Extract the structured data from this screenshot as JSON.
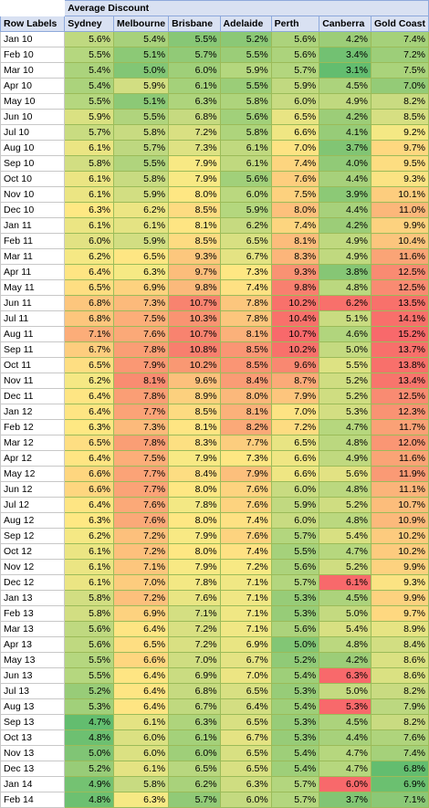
{
  "header": {
    "title": "Average Discount",
    "row_labels": "Row Labels",
    "columns": [
      "Sydney",
      "Melbourne",
      "Brisbane",
      "Adelaide",
      "Perth",
      "Canberra",
      "Gold Coast"
    ]
  },
  "rows": [
    {
      "label": "Jan 10",
      "cells": [
        "5.6%",
        "5.4%",
        "5.5%",
        "5.2%",
        "5.6%",
        "4.2%",
        "7.4%"
      ],
      "colors": [
        "#bfd980",
        "#a7d17b",
        "#87c776",
        "#8bc876",
        "#acd37c",
        "#9ccd78",
        "#a5d17a"
      ]
    },
    {
      "label": "Feb 10",
      "cells": [
        "5.5%",
        "5.1%",
        "5.7%",
        "5.5%",
        "5.6%",
        "3.4%",
        "7.2%"
      ],
      "colors": [
        "#b5d77f",
        "#8cc976",
        "#91ca77",
        "#9bcd78",
        "#acd37c",
        "#72c172",
        "#9dce79"
      ]
    },
    {
      "label": "Mar 10",
      "cells": [
        "5.4%",
        "5.0%",
        "6.0%",
        "5.9%",
        "5.7%",
        "3.1%",
        "7.5%"
      ],
      "colors": [
        "#abd37c",
        "#82c675",
        "#9fcf79",
        "#b4d77e",
        "#b3d67e",
        "#63bd6f",
        "#aad37b"
      ]
    },
    {
      "label": "Apr 10",
      "cells": [
        "5.4%",
        "5.9%",
        "6.1%",
        "5.5%",
        "5.9%",
        "4.5%",
        "7.0%"
      ],
      "colors": [
        "#abd37c",
        "#d2de82",
        "#a4d17a",
        "#9bcd78",
        "#c1d980",
        "#acd37c",
        "#94cb77"
      ]
    },
    {
      "label": "May 10",
      "cells": [
        "5.5%",
        "5.1%",
        "6.3%",
        "5.8%",
        "6.0%",
        "4.9%",
        "8.2%"
      ],
      "colors": [
        "#b5d77f",
        "#8cc976",
        "#aed47c",
        "#aed47c",
        "#c8db81",
        "#c0d97f",
        "#c9db81"
      ]
    },
    {
      "label": "Jun 10",
      "cells": [
        "5.9%",
        "5.5%",
        "6.8%",
        "5.6%",
        "6.5%",
        "4.2%",
        "8.5%"
      ],
      "colors": [
        "#dae182",
        "#b0d47d",
        "#c6da80",
        "#a1d07a",
        "#e8e483",
        "#9ccd78",
        "#d6df82"
      ]
    },
    {
      "label": "Jul 10",
      "cells": [
        "5.7%",
        "5.8%",
        "7.2%",
        "5.8%",
        "6.6%",
        "4.1%",
        "9.2%"
      ],
      "colors": [
        "#c9dc81",
        "#c8db81",
        "#d9e082",
        "#aed47c",
        "#efe683",
        "#97cc78",
        "#f4e884"
      ]
    },
    {
      "label": "Aug 10",
      "cells": [
        "6.1%",
        "5.7%",
        "7.3%",
        "6.1%",
        "7.0%",
        "3.7%",
        "9.7%"
      ],
      "colors": [
        "#ebe583",
        "#bed880",
        "#dee283",
        "#c0d97f",
        "#fde383",
        "#81c574",
        "#fed880"
      ]
    },
    {
      "label": "Sep 10",
      "cells": [
        "5.8%",
        "5.5%",
        "7.9%",
        "6.1%",
        "7.4%",
        "4.0%",
        "9.5%"
      ],
      "colors": [
        "#d2de82",
        "#b0d47d",
        "#f8e984",
        "#c0d97f",
        "#fdd57f",
        "#91ca77",
        "#fddd81"
      ]
    },
    {
      "label": "Oct 10",
      "cells": [
        "6.1%",
        "5.8%",
        "7.9%",
        "5.6%",
        "7.6%",
        "4.4%",
        "9.3%"
      ],
      "colors": [
        "#ebe583",
        "#c8db81",
        "#f8e984",
        "#a1d07a",
        "#fdce7e",
        "#a7d17b",
        "#fbe383"
      ]
    },
    {
      "label": "Nov 10",
      "cells": [
        "6.1%",
        "5.9%",
        "8.0%",
        "6.0%",
        "7.5%",
        "3.9%",
        "10.1%"
      ],
      "colors": [
        "#ebe583",
        "#d2de82",
        "#fee783",
        "#bad87f",
        "#fdd17e",
        "#8cc976",
        "#fdcd7e"
      ]
    },
    {
      "label": "Dec 10",
      "cells": [
        "6.3%",
        "6.2%",
        "8.5%",
        "5.9%",
        "8.0%",
        "4.4%",
        "11.0%"
      ],
      "colors": [
        "#fee883",
        "#ece583",
        "#fddb81",
        "#b4d77e",
        "#fdc07c",
        "#a7d17b",
        "#fcb77a"
      ]
    },
    {
      "label": "Jan 11",
      "cells": [
        "6.1%",
        "6.1%",
        "8.1%",
        "6.2%",
        "7.4%",
        "4.2%",
        "9.9%"
      ],
      "colors": [
        "#ebe583",
        "#e4e383",
        "#fee583",
        "#c6da80",
        "#fdd57f",
        "#9ccd78",
        "#fdd27f"
      ]
    },
    {
      "label": "Feb 11",
      "cells": [
        "6.0%",
        "5.9%",
        "8.5%",
        "6.5%",
        "8.1%",
        "4.9%",
        "10.4%"
      ],
      "colors": [
        "#e2e283",
        "#d2de82",
        "#fddb81",
        "#d8e082",
        "#fcbc7b",
        "#c0d97f",
        "#fcc57d"
      ]
    },
    {
      "label": "Mar 11",
      "cells": [
        "6.2%",
        "6.5%",
        "9.3%",
        "6.7%",
        "8.3%",
        "4.9%",
        "11.6%"
      ],
      "colors": [
        "#f5e884",
        "#fee683",
        "#fcc77d",
        "#e4e383",
        "#fcb57a",
        "#c0d97f",
        "#faa476"
      ]
    },
    {
      "label": "Apr 11",
      "cells": [
        "6.4%",
        "6.3%",
        "9.7%",
        "7.3%",
        "9.3%",
        "3.8%",
        "12.5%"
      ],
      "colors": [
        "#fee583",
        "#f6e984",
        "#fcbd7b",
        "#fee783",
        "#f99273",
        "#86c675",
        "#f98b72"
      ]
    },
    {
      "label": "May 11",
      "cells": [
        "6.5%",
        "6.9%",
        "9.8%",
        "7.4%",
        "9.8%",
        "4.8%",
        "12.5%"
      ],
      "colors": [
        "#fede82",
        "#fdd27f",
        "#fbb97b",
        "#fee183",
        "#f8806f",
        "#bbd87f",
        "#f98b72"
      ]
    },
    {
      "label": "Jun 11",
      "cells": [
        "6.8%",
        "7.3%",
        "10.7%",
        "7.8%",
        "10.2%",
        "6.2%",
        "13.5%"
      ],
      "colors": [
        "#fdc67d",
        "#fcba7b",
        "#f8836f",
        "#fcc67d",
        "#f8716b",
        "#f8706b",
        "#f8716b"
      ]
    },
    {
      "label": "Jul 11",
      "cells": [
        "6.8%",
        "7.5%",
        "10.3%",
        "7.8%",
        "10.4%",
        "5.1%",
        "14.1%"
      ],
      "colors": [
        "#fdc67d",
        "#fcae79",
        "#f99472",
        "#fcc67d",
        "#f8716b",
        "#c9dc81",
        "#f8706b"
      ]
    },
    {
      "label": "Aug 11",
      "cells": [
        "7.1%",
        "7.6%",
        "10.7%",
        "8.1%",
        "10.7%",
        "4.6%",
        "15.2%"
      ],
      "colors": [
        "#fcad79",
        "#fba978",
        "#f8836f",
        "#fbb17a",
        "#f8696b",
        "#b1d57d",
        "#f8696b"
      ]
    },
    {
      "label": "Sep 11",
      "cells": [
        "6.7%",
        "7.8%",
        "10.8%",
        "8.5%",
        "10.2%",
        "5.0%",
        "13.7%"
      ],
      "colors": [
        "#fdcd7e",
        "#fa9e75",
        "#f87f6e",
        "#fa9574",
        "#f8716b",
        "#c4da80",
        "#f8706b"
      ]
    },
    {
      "label": "Oct 11",
      "cells": [
        "6.5%",
        "7.9%",
        "10.2%",
        "8.5%",
        "9.6%",
        "5.5%",
        "13.8%"
      ],
      "colors": [
        "#fede82",
        "#fa9874",
        "#f99873",
        "#fa9574",
        "#f98871",
        "#dde283",
        "#f8706b"
      ]
    },
    {
      "label": "Nov 11",
      "cells": [
        "6.2%",
        "8.1%",
        "9.6%",
        "8.4%",
        "8.7%",
        "5.2%",
        "13.4%"
      ],
      "colors": [
        "#f5e884",
        "#f98c71",
        "#fcc07c",
        "#fa9c75",
        "#fbaa78",
        "#cfdd81",
        "#f8756c"
      ]
    },
    {
      "label": "Dec 11",
      "cells": [
        "6.4%",
        "7.8%",
        "8.9%",
        "8.0%",
        "7.9%",
        "5.2%",
        "12.5%"
      ],
      "colors": [
        "#fee583",
        "#fa9e75",
        "#fcd07e",
        "#fbb87b",
        "#fdc57d",
        "#cfdd81",
        "#f98b72"
      ]
    },
    {
      "label": "Jan 12",
      "cells": [
        "6.4%",
        "7.7%",
        "8.5%",
        "8.1%",
        "7.0%",
        "5.3%",
        "12.3%"
      ],
      "colors": [
        "#fee583",
        "#fba377",
        "#fddb81",
        "#fbb17a",
        "#fde383",
        "#d3de82",
        "#f99373"
      ]
    },
    {
      "label": "Feb 12",
      "cells": [
        "6.3%",
        "7.3%",
        "8.1%",
        "8.2%",
        "7.2%",
        "4.7%",
        "11.7%"
      ],
      "colors": [
        "#fee883",
        "#fcba7b",
        "#fee583",
        "#fba978",
        "#fddc81",
        "#b6d77e",
        "#faa176"
      ]
    },
    {
      "label": "Mar 12",
      "cells": [
        "6.5%",
        "7.8%",
        "8.3%",
        "7.7%",
        "6.5%",
        "4.8%",
        "12.0%"
      ],
      "colors": [
        "#fede82",
        "#fa9e75",
        "#fde082",
        "#fccd7e",
        "#e8e483",
        "#bbd87f",
        "#fa9674"
      ]
    },
    {
      "label": "Apr 12",
      "cells": [
        "6.4%",
        "7.5%",
        "7.9%",
        "7.3%",
        "6.6%",
        "4.9%",
        "11.6%"
      ],
      "colors": [
        "#fee583",
        "#fcae79",
        "#f8e984",
        "#fee783",
        "#efe683",
        "#c0d97f",
        "#faa476"
      ]
    },
    {
      "label": "May 12",
      "cells": [
        "6.6%",
        "7.7%",
        "8.4%",
        "7.9%",
        "6.6%",
        "5.6%",
        "11.9%"
      ],
      "colors": [
        "#fed67f",
        "#fba377",
        "#fddd82",
        "#fcbf7c",
        "#efe683",
        "#e2e283",
        "#fa9a75"
      ]
    },
    {
      "label": "Jun 12",
      "cells": [
        "6.6%",
        "7.7%",
        "8.0%",
        "7.6%",
        "6.0%",
        "4.8%",
        "11.1%"
      ],
      "colors": [
        "#fed67f",
        "#fba377",
        "#fee783",
        "#fdd37f",
        "#c8db81",
        "#bbd87f",
        "#fbb47a"
      ]
    },
    {
      "label": "Jul 12",
      "cells": [
        "6.4%",
        "7.6%",
        "7.8%",
        "7.6%",
        "5.9%",
        "5.2%",
        "10.7%"
      ],
      "colors": [
        "#fee583",
        "#fba978",
        "#f3e884",
        "#fdd37f",
        "#c1d980",
        "#cfdd81",
        "#fcbd7b"
      ]
    },
    {
      "label": "Aug 12",
      "cells": [
        "6.3%",
        "7.6%",
        "8.0%",
        "7.4%",
        "6.0%",
        "4.8%",
        "10.9%"
      ],
      "colors": [
        "#fee883",
        "#fba978",
        "#fee783",
        "#fee183",
        "#c8db81",
        "#bbd87f",
        "#fcb97b"
      ]
    },
    {
      "label": "Sep 12",
      "cells": [
        "6.2%",
        "7.2%",
        "7.9%",
        "7.6%",
        "5.7%",
        "5.4%",
        "10.2%"
      ],
      "colors": [
        "#f5e884",
        "#fdc07c",
        "#f8e984",
        "#fdd37f",
        "#b3d67e",
        "#d8e082",
        "#fdcb7e"
      ]
    },
    {
      "label": "Oct 12",
      "cells": [
        "6.1%",
        "7.2%",
        "8.0%",
        "7.4%",
        "5.5%",
        "4.7%",
        "10.2%"
      ],
      "colors": [
        "#ebe583",
        "#fdc07c",
        "#fee783",
        "#fee183",
        "#a5d17b",
        "#b6d77e",
        "#fdcb7e"
      ]
    },
    {
      "label": "Nov 12",
      "cells": [
        "6.1%",
        "7.1%",
        "7.9%",
        "7.2%",
        "5.6%",
        "5.2%",
        "9.9%"
      ],
      "colors": [
        "#ebe583",
        "#fdc67d",
        "#f8e984",
        "#f7e984",
        "#acd37c",
        "#cfdd81",
        "#fdd27f"
      ]
    },
    {
      "label": "Dec 12",
      "cells": [
        "6.1%",
        "7.0%",
        "7.8%",
        "7.1%",
        "5.7%",
        "6.1%",
        "9.3%"
      ],
      "colors": [
        "#ebe583",
        "#fdcc7e",
        "#f3e884",
        "#f0e784",
        "#b3d67e",
        "#f8696b",
        "#fbe383"
      ]
    },
    {
      "label": "Jan 13",
      "cells": [
        "5.8%",
        "7.2%",
        "7.6%",
        "7.1%",
        "5.3%",
        "4.5%",
        "9.9%"
      ],
      "colors": [
        "#d2de82",
        "#fdc07c",
        "#e9e583",
        "#f0e784",
        "#97cc78",
        "#acd37c",
        "#fdd27f"
      ]
    },
    {
      "label": "Feb 13",
      "cells": [
        "5.8%",
        "6.9%",
        "7.1%",
        "7.1%",
        "5.3%",
        "5.0%",
        "9.7%"
      ],
      "colors": [
        "#d2de82",
        "#fdd27f",
        "#d4df82",
        "#f0e784",
        "#97cc78",
        "#c4da80",
        "#fed880"
      ]
    },
    {
      "label": "Mar 13",
      "cells": [
        "5.6%",
        "6.4%",
        "7.2%",
        "7.1%",
        "5.6%",
        "5.4%",
        "8.9%"
      ],
      "colors": [
        "#bfd980",
        "#fee583",
        "#d9e082",
        "#f0e784",
        "#acd37c",
        "#d8e082",
        "#e6e483"
      ]
    },
    {
      "label": "Apr 13",
      "cells": [
        "5.6%",
        "6.5%",
        "7.2%",
        "6.9%",
        "5.0%",
        "4.8%",
        "8.4%"
      ],
      "colors": [
        "#bfd980",
        "#fede82",
        "#d9e082",
        "#e9e583",
        "#82c675",
        "#bbd87f",
        "#d2de82"
      ]
    },
    {
      "label": "May 13",
      "cells": [
        "5.5%",
        "6.6%",
        "7.0%",
        "6.7%",
        "5.2%",
        "4.2%",
        "8.6%"
      ],
      "colors": [
        "#b5d77f",
        "#fed67f",
        "#cfdd81",
        "#e4e383",
        "#90ca77",
        "#9ccd78",
        "#dae182"
      ]
    },
    {
      "label": "Jun 13",
      "cells": [
        "5.5%",
        "6.4%",
        "6.9%",
        "7.0%",
        "5.4%",
        "6.3%",
        "8.6%"
      ],
      "colors": [
        "#b5d77f",
        "#fee583",
        "#cadc81",
        "#ece583",
        "#9ecf79",
        "#f8696b",
        "#dae182"
      ]
    },
    {
      "label": "Jul 13",
      "cells": [
        "5.2%",
        "6.4%",
        "6.8%",
        "6.5%",
        "5.3%",
        "5.0%",
        "8.2%"
      ],
      "colors": [
        "#98cc78",
        "#fee583",
        "#c6da80",
        "#d8e082",
        "#97cc78",
        "#c4da80",
        "#c9db81"
      ]
    },
    {
      "label": "Aug 13",
      "cells": [
        "5.3%",
        "6.4%",
        "6.7%",
        "6.4%",
        "5.4%",
        "5.3%",
        "7.9%"
      ],
      "colors": [
        "#a1d07a",
        "#fee583",
        "#c0d97f",
        "#d3de82",
        "#9ecf79",
        "#f8696b",
        "#bcd880"
      ]
    },
    {
      "label": "Sep 13",
      "cells": [
        "4.7%",
        "6.1%",
        "6.3%",
        "6.5%",
        "5.3%",
        "4.5%",
        "8.2%"
      ],
      "colors": [
        "#63bd6f",
        "#e4e383",
        "#aed47c",
        "#d8e082",
        "#97cc78",
        "#acd37c",
        "#c9db81"
      ]
    },
    {
      "label": "Oct 13",
      "cells": [
        "4.8%",
        "6.0%",
        "6.1%",
        "6.7%",
        "5.3%",
        "4.4%",
        "7.6%"
      ],
      "colors": [
        "#6dc071",
        "#dbe182",
        "#a4d17a",
        "#e4e383",
        "#97cc78",
        "#a7d17b",
        "#afd47c"
      ]
    },
    {
      "label": "Nov 13",
      "cells": [
        "5.0%",
        "6.0%",
        "6.0%",
        "6.5%",
        "5.4%",
        "4.7%",
        "7.4%"
      ],
      "colors": [
        "#80c575",
        "#dbe182",
        "#9fcf79",
        "#d8e082",
        "#9ecf79",
        "#b6d77e",
        "#a5d17a"
      ]
    },
    {
      "label": "Dec 13",
      "cells": [
        "5.2%",
        "6.1%",
        "6.5%",
        "6.5%",
        "5.4%",
        "4.7%",
        "6.8%"
      ],
      "colors": [
        "#98cc78",
        "#e4e383",
        "#b8d77f",
        "#d8e082",
        "#9ecf79",
        "#b6d77e",
        "#63bd6f"
      ]
    },
    {
      "label": "Jan 14",
      "cells": [
        "4.9%",
        "5.8%",
        "6.2%",
        "6.3%",
        "5.7%",
        "6.0%",
        "6.9%"
      ],
      "colors": [
        "#74c272",
        "#c8db81",
        "#a9d27b",
        "#cfdd81",
        "#b3d67e",
        "#f8696b",
        "#6bc070"
      ]
    },
    {
      "label": "Feb 14",
      "cells": [
        "4.8%",
        "6.3%",
        "5.7%",
        "6.0%",
        "5.7%",
        "3.7%",
        "7.1%"
      ],
      "colors": [
        "#6dc071",
        "#f6e984",
        "#91ca77",
        "#c4da80",
        "#b3d67e",
        "#81c574",
        "#8bc876"
      ]
    }
  ]
}
